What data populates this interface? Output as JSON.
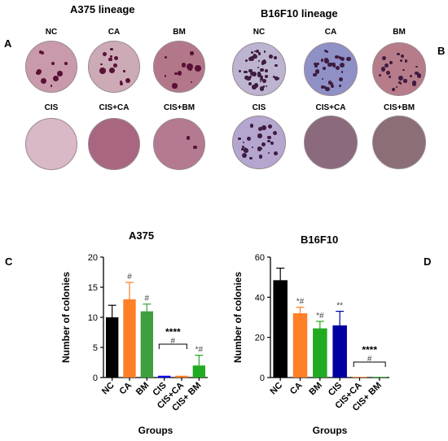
{
  "figure": {
    "panel_a": {
      "letter": "A",
      "title": "A375 lineage",
      "dishes": [
        {
          "label": "NC",
          "color": "#c99aab",
          "colonies": 10
        },
        {
          "label": "CA",
          "color": "#ccaab6",
          "colonies": 13
        },
        {
          "label": "BM",
          "color": "#b27889",
          "colonies": 11
        },
        {
          "label": "CIS",
          "color": "#d9b8c7",
          "colonies": 0
        },
        {
          "label": "CIS+CA",
          "color": "#a96681",
          "colonies": 0
        },
        {
          "label": "CIS+BM",
          "color": "#b37a92",
          "colonies": 2
        }
      ]
    },
    "panel_b": {
      "letter": "B",
      "title": "B16F10 lineage",
      "dishes": [
        {
          "label": "NC",
          "color": "#bcb4d0",
          "colonies": 48
        },
        {
          "label": "CA",
          "color": "#8f90c6",
          "colonies": 32
        },
        {
          "label": "BM",
          "color": "#b67c8a",
          "colonies": 24
        },
        {
          "label": "CIS",
          "color": "#b4a6cf",
          "colonies": 26
        },
        {
          "label": "CIS+CA",
          "color": "#8a6a7c",
          "colonies": 0
        },
        {
          "label": "CIS+BM",
          "color": "#8c6e77",
          "colonies": 0
        }
      ]
    },
    "panel_c": {
      "letter": "C"
    },
    "panel_d": {
      "letter": "D"
    }
  },
  "chart_data": [
    {
      "type": "bar",
      "title": "A375",
      "xlabel": "Groups",
      "ylabel": "Number of colonies",
      "ylim": [
        0,
        20
      ],
      "yticks": [
        "0",
        "5",
        "10",
        "15",
        "20"
      ],
      "categories": [
        "NC",
        "CA",
        "BM",
        "CIS",
        "CIS+CA",
        "CIS+ BM"
      ],
      "values": [
        10,
        13,
        11,
        0.3,
        0.3,
        2
      ],
      "errors": [
        2,
        2.8,
        1.2,
        0,
        0,
        1.7
      ],
      "colors": [
        "#000000",
        "#ff7f27",
        "#3f9f3f",
        "#0000ff",
        "#ff7f27",
        "#22aa22"
      ],
      "annotations": [
        "",
        "#",
        "#",
        "",
        "",
        "*#"
      ],
      "bracket_label": "****",
      "bracket_sub": "#"
    },
    {
      "type": "bar",
      "title": "B16F10",
      "xlabel": "Groups",
      "ylabel": "Number of colonies",
      "ylim": [
        0,
        60
      ],
      "yticks": [
        "0",
        "20",
        "40",
        "60"
      ],
      "categories": [
        "NC",
        "CA",
        "BM",
        "CIS",
        "CIS+CA",
        "CIS+ BM"
      ],
      "values": [
        48.5,
        32,
        24.5,
        26,
        0.3,
        0.3
      ],
      "errors": [
        6,
        3,
        3.5,
        7,
        0,
        0
      ],
      "colors": [
        "#000000",
        "#ff7f27",
        "#22aa22",
        "#0000a0",
        "#ff7f27",
        "#22aa22"
      ],
      "annotations": [
        "",
        "*#",
        "*#",
        "**",
        "",
        ""
      ],
      "bracket_label": "****",
      "bracket_sub": "#"
    }
  ]
}
